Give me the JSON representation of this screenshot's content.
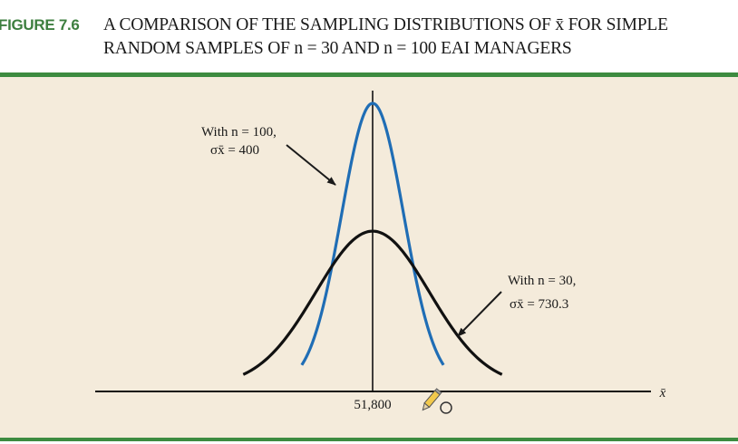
{
  "figure": {
    "label": "FIGURE 7.6",
    "title_line1": "A COMPARISON OF THE SAMPLING DISTRIBUTIONS OF x̄ FOR SIMPLE",
    "title_line2": "RANDOM SAMPLES OF n = 30 AND n = 100 EAI MANAGERS"
  },
  "colors": {
    "label_green": "#3d7f3f",
    "rule_green": "#3d8b40",
    "panel_bg": "#f4ebdb",
    "curve_n100": "#1f6db5",
    "curve_n30": "#111111"
  },
  "chart_data": {
    "type": "line",
    "mean": 51800,
    "xlabel": "x̄",
    "tick_labels": [
      "51,800"
    ],
    "series": [
      {
        "name": "With n = 100, σx̄ = 400",
        "n": 100,
        "sigma": 400,
        "color": "#1f6db5"
      },
      {
        "name": "With n = 30, σx̄ = 730.3",
        "n": 30,
        "sigma": 730.3,
        "color": "#111111"
      }
    ],
    "annotations": [
      {
        "line1": "With n = 100,",
        "line2": "σx̄ = 400"
      },
      {
        "line1": "With n = 30,",
        "line2": "σx̄ = 730.3"
      }
    ]
  }
}
